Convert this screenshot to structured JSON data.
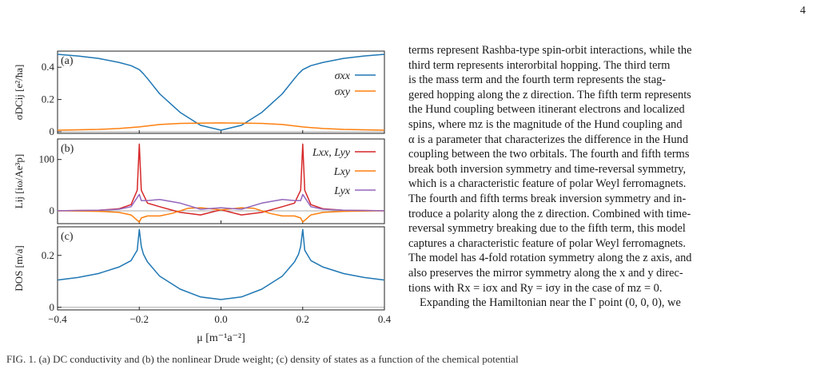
{
  "page": {
    "number": "4"
  },
  "figure": {
    "caption_fragment": "FIG. 1. (a) DC conductivity and (b) the nonlinear Drude weight; (c) density of states as a function of the chemical potential",
    "x_axis_label": "μ [m⁻¹a⁻²]",
    "x_ticks": [
      "−0.4",
      "−0.2",
      "0.0",
      "0.2",
      "0.4"
    ]
  },
  "chart_data": [
    {
      "type": "line",
      "panel_label": "(a)",
      "ylabel": "σDCij [e²/ħa]",
      "xlim": [
        -0.4,
        0.4
      ],
      "ylim": [
        -0.01,
        0.5
      ],
      "y_ticks": [
        0.0,
        0.2,
        0.4
      ],
      "legend_position": "top-right",
      "series": [
        {
          "name": "σxx",
          "color": "#1f77b4",
          "x": [
            -0.4,
            -0.35,
            -0.3,
            -0.25,
            -0.22,
            -0.2,
            -0.19,
            -0.18,
            -0.15,
            -0.1,
            -0.05,
            0.0,
            0.05,
            0.1,
            0.15,
            0.18,
            0.19,
            0.2,
            0.22,
            0.25,
            0.3,
            0.35,
            0.4
          ],
          "y": [
            0.48,
            0.47,
            0.455,
            0.43,
            0.41,
            0.385,
            0.36,
            0.33,
            0.235,
            0.12,
            0.04,
            0.01,
            0.04,
            0.12,
            0.235,
            0.33,
            0.36,
            0.385,
            0.41,
            0.43,
            0.455,
            0.47,
            0.48
          ]
        },
        {
          "name": "σxy",
          "color": "#ff7f0e",
          "x": [
            -0.4,
            -0.3,
            -0.25,
            -0.2,
            -0.15,
            -0.1,
            0.0,
            0.1,
            0.15,
            0.2,
            0.25,
            0.3,
            0.4
          ],
          "y": [
            0.01,
            0.015,
            0.02,
            0.03,
            0.045,
            0.052,
            0.055,
            0.052,
            0.045,
            0.03,
            0.02,
            0.015,
            0.01
          ]
        }
      ]
    },
    {
      "type": "line",
      "panel_label": "(b)",
      "ylabel": "Lij [iω/Ae³p]",
      "xlim": [
        -0.4,
        0.4
      ],
      "ylim": [
        -25,
        140
      ],
      "y_ticks": [
        0,
        100
      ],
      "legend_position": "top-right",
      "series": [
        {
          "name": "Lxx, Lyy",
          "color": "#d62728",
          "x": [
            -0.4,
            -0.3,
            -0.25,
            -0.22,
            -0.205,
            -0.2,
            -0.195,
            -0.18,
            -0.15,
            -0.1,
            -0.05,
            0.0,
            0.05,
            0.1,
            0.15,
            0.18,
            0.195,
            0.2,
            0.205,
            0.22,
            0.25,
            0.3,
            0.4
          ],
          "y": [
            0,
            1,
            4,
            12,
            40,
            130,
            40,
            15,
            8,
            -3,
            -8,
            2,
            -8,
            -3,
            8,
            15,
            40,
            130,
            40,
            12,
            4,
            1,
            0
          ]
        },
        {
          "name": "Lxy",
          "color": "#ff7f0e",
          "x": [
            -0.4,
            -0.3,
            -0.25,
            -0.22,
            -0.2,
            -0.195,
            -0.18,
            -0.15,
            -0.12,
            -0.08,
            -0.05,
            0.0,
            0.05,
            0.08,
            0.12,
            0.15,
            0.18,
            0.195,
            0.2,
            0.22,
            0.25,
            0.3,
            0.4
          ],
          "y": [
            0,
            -1,
            -3,
            -8,
            -22,
            -14,
            -10,
            -10,
            -5,
            5,
            6,
            2,
            6,
            5,
            -5,
            -10,
            -10,
            -14,
            -22,
            -8,
            -3,
            -1,
            0
          ]
        },
        {
          "name": "Lyx",
          "color": "#9467bd",
          "x": [
            -0.4,
            -0.3,
            -0.25,
            -0.22,
            -0.2,
            -0.195,
            -0.18,
            -0.15,
            -0.1,
            -0.05,
            0.0,
            0.05,
            0.1,
            0.15,
            0.18,
            0.195,
            0.2,
            0.22,
            0.25,
            0.3,
            0.4
          ],
          "y": [
            0,
            1,
            3,
            8,
            32,
            20,
            20,
            22,
            15,
            3,
            6,
            3,
            15,
            22,
            20,
            20,
            32,
            8,
            3,
            1,
            0
          ]
        }
      ]
    },
    {
      "type": "line",
      "panel_label": "(c)",
      "ylabel": "DOS [m/a]",
      "xlim": [
        -0.4,
        0.4
      ],
      "ylim": [
        -0.01,
        0.31
      ],
      "y_ticks": [
        0.0,
        0.2
      ],
      "series": [
        {
          "name": "",
          "color": "#1f77b4",
          "x": [
            -0.4,
            -0.35,
            -0.3,
            -0.25,
            -0.22,
            -0.205,
            -0.2,
            -0.195,
            -0.19,
            -0.18,
            -0.15,
            -0.1,
            -0.05,
            0.0,
            0.05,
            0.1,
            0.15,
            0.18,
            0.19,
            0.195,
            0.2,
            0.205,
            0.22,
            0.25,
            0.3,
            0.35,
            0.4
          ],
          "y": [
            0.105,
            0.115,
            0.13,
            0.155,
            0.18,
            0.22,
            0.3,
            0.235,
            0.205,
            0.175,
            0.12,
            0.07,
            0.04,
            0.03,
            0.04,
            0.07,
            0.12,
            0.175,
            0.205,
            0.235,
            0.3,
            0.22,
            0.18,
            0.155,
            0.13,
            0.115,
            0.105
          ]
        }
      ]
    }
  ],
  "body": {
    "lines": [
      "terms represent Rashba-type spin-orbit interactions, while the",
      "third term represents interorbital hopping. The third term",
      "is the mass term and the fourth term represents the stag-",
      "gered hopping along the z direction. The fifth term represents",
      "the Hund coupling between itinerant electrons and localized",
      "spins, where mz is the magnitude of the Hund coupling and",
      "α is a parameter that characterizes the difference in the Hund",
      "coupling between the two orbitals. The fourth and fifth terms",
      "break both inversion symmetry and time-reversal symmetry,",
      "which is a characteristic feature of polar Weyl ferromagnets.",
      "The fourth and fifth terms break inversion symmetry and in-",
      "troduce a polarity along the z direction. Combined with time-",
      "reversal symmetry breaking due to the fifth term, this model",
      "captures a characteristic feature of polar Weyl ferromagnets.",
      "The model has 4-fold rotation symmetry along the z axis, and",
      "also preserves the mirror symmetry along the x and y direc-",
      "tions with Rx = iσx and Ry = iσy in the case of mz = 0."
    ],
    "next_paragraph": "Expanding the Hamiltonian near the Γ point (0, 0, 0), we"
  }
}
